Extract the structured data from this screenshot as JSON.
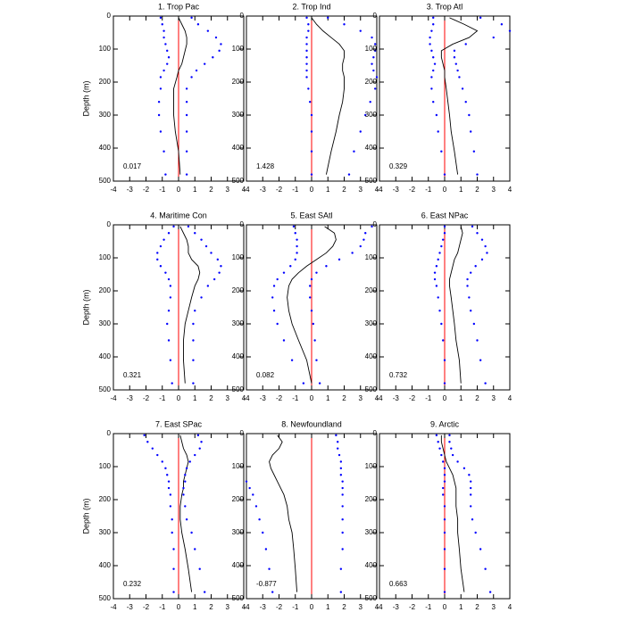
{
  "chart_data": [
    {
      "type": "line",
      "title": "1. Trop Pac",
      "ylabel": "Depth (m)",
      "annotation": 0.017,
      "y": [
        5,
        25,
        45,
        65,
        85,
        105,
        125,
        145,
        165,
        185,
        220,
        260,
        300,
        350,
        410,
        480
      ],
      "series": [
        {
          "color": "#000000",
          "style": "line",
          "values": [
            0,
            0.2,
            0.4,
            0.5,
            0.5,
            0.4,
            0.3,
            0.2,
            0,
            -0.1,
            -0.3,
            -0.3,
            -0.3,
            -0.2,
            0,
            0.1
          ]
        },
        {
          "color": "#0000ff",
          "style": "dots",
          "values": [
            -1.1,
            -1.0,
            -0.9,
            -0.9,
            -0.8,
            -0.7,
            -0.6,
            -0.7,
            -0.9,
            -1.1,
            -1.1,
            -1.2,
            -1.2,
            -1.1,
            -0.9,
            -0.8
          ]
        },
        {
          "color": "#0000ff",
          "style": "dots",
          "values": [
            0.8,
            1.2,
            1.8,
            2.3,
            2.6,
            2.5,
            2.1,
            1.6,
            1.1,
            0.8,
            0.5,
            0.5,
            0.5,
            0.5,
            0.5,
            0.5
          ]
        }
      ],
      "vline": 0,
      "vline_color": "#ff0000",
      "xlim": [
        -4,
        4
      ],
      "xticks": [
        -4,
        -3,
        -2,
        -1,
        0,
        1,
        2,
        3,
        4
      ],
      "ylim": [
        500,
        0
      ],
      "yticks": [
        0,
        100,
        200,
        300,
        400,
        500
      ]
    },
    {
      "type": "line",
      "title": "2. Trop Ind",
      "annotation": 1.428,
      "y": [
        5,
        25,
        45,
        65,
        85,
        105,
        125,
        145,
        165,
        185,
        220,
        260,
        300,
        350,
        410,
        480
      ],
      "series": [
        {
          "color": "#000000",
          "style": "line",
          "values": [
            0,
            0.3,
            0.7,
            1.2,
            1.7,
            2.0,
            2.0,
            1.9,
            1.9,
            2.0,
            2.0,
            1.9,
            1.7,
            1.5,
            1.2,
            0.9
          ]
        },
        {
          "color": "#0000ff",
          "style": "dots",
          "values": [
            -0.3,
            -0.2,
            -0.2,
            -0.3,
            -0.3,
            -0.3,
            -0.3,
            -0.3,
            -0.3,
            -0.3,
            -0.2,
            -0.1,
            0,
            0,
            0,
            0
          ]
        },
        {
          "color": "#0000ff",
          "style": "dots",
          "values": [
            1.0,
            2.0,
            3.0,
            3.7,
            3.9,
            3.9,
            3.8,
            3.7,
            3.8,
            4.0,
            3.9,
            3.6,
            3.3,
            3.0,
            2.6,
            2.3
          ]
        }
      ],
      "vline": 0,
      "vline_color": "#ff0000",
      "xlim": [
        -4,
        4
      ],
      "xticks": [
        -4,
        -3,
        -2,
        -1,
        0,
        1,
        2,
        3,
        4
      ],
      "ylim": [
        500,
        0
      ],
      "yticks": [
        0,
        100,
        200,
        300,
        400,
        500
      ]
    },
    {
      "type": "line",
      "title": "3. Trop Atl",
      "annotation": 0.329,
      "y": [
        5,
        25,
        45,
        65,
        85,
        105,
        125,
        145,
        165,
        185,
        220,
        260,
        300,
        350,
        410,
        480
      ],
      "series": [
        {
          "color": "#000000",
          "style": "line",
          "values": [
            0.3,
            1.2,
            2.0,
            1.5,
            0.5,
            -0.2,
            -0.2,
            -0.1,
            0,
            0,
            0.1,
            0.2,
            0.3,
            0.4,
            0.6,
            0.8
          ]
        },
        {
          "color": "#0000ff",
          "style": "dots",
          "values": [
            -0.7,
            -0.7,
            -0.8,
            -0.9,
            -0.9,
            -0.8,
            -0.7,
            -0.6,
            -0.7,
            -0.8,
            -0.8,
            -0.7,
            -0.5,
            -0.4,
            -0.2,
            0
          ]
        },
        {
          "color": "#0000ff",
          "style": "dots",
          "values": [
            2.2,
            3.5,
            4.0,
            3.0,
            1.3,
            0.6,
            0.6,
            0.7,
            0.8,
            0.9,
            1.1,
            1.3,
            1.5,
            1.6,
            1.8,
            2.0
          ]
        }
      ],
      "vline": 0,
      "vline_color": "#ff0000",
      "xlim": [
        -4,
        4
      ],
      "xticks": [
        -4,
        -3,
        -2,
        -1,
        0,
        1,
        2,
        3,
        4
      ],
      "ylim": [
        500,
        0
      ],
      "yticks": [
        0,
        100,
        200,
        300,
        400,
        500
      ]
    },
    {
      "type": "line",
      "title": "4. Maritime Con",
      "ylabel": "Depth (m)",
      "annotation": 0.321,
      "y": [
        5,
        25,
        45,
        65,
        85,
        105,
        125,
        145,
        165,
        185,
        220,
        260,
        300,
        350,
        410,
        480
      ],
      "series": [
        {
          "color": "#000000",
          "style": "line",
          "values": [
            0.1,
            0.3,
            0.5,
            0.6,
            0.6,
            0.8,
            1.2,
            1.3,
            1.2,
            1.0,
            0.8,
            0.6,
            0.4,
            0.3,
            0.3,
            0.4
          ]
        },
        {
          "color": "#0000ff",
          "style": "dots",
          "values": [
            -0.3,
            -0.6,
            -0.9,
            -1.1,
            -1.3,
            -1.3,
            -1.1,
            -0.8,
            -0.6,
            -0.5,
            -0.5,
            -0.6,
            -0.7,
            -0.6,
            -0.5,
            -0.4
          ]
        },
        {
          "color": "#0000ff",
          "style": "dots",
          "values": [
            0.6,
            1.0,
            1.4,
            1.7,
            2.0,
            2.4,
            2.6,
            2.5,
            2.2,
            1.8,
            1.4,
            1.0,
            0.9,
            0.9,
            0.9,
            0.9
          ]
        }
      ],
      "vline": 0,
      "vline_color": "#ff0000",
      "xlim": [
        -4,
        4
      ],
      "xticks": [
        -4,
        -3,
        -2,
        -1,
        0,
        1,
        2,
        3,
        4
      ],
      "ylim": [
        500,
        0
      ],
      "yticks": [
        0,
        100,
        200,
        300,
        400,
        500
      ]
    },
    {
      "type": "line",
      "title": "5. East SAtl",
      "annotation": 0.082,
      "y": [
        5,
        25,
        45,
        65,
        85,
        105,
        125,
        145,
        165,
        185,
        220,
        260,
        300,
        350,
        410,
        480
      ],
      "series": [
        {
          "color": "#000000",
          "style": "line",
          "values": [
            0.8,
            1.4,
            1.5,
            1.3,
            0.9,
            0.3,
            -0.3,
            -0.8,
            -1.2,
            -1.4,
            -1.5,
            -1.4,
            -1.2,
            -0.8,
            -0.3,
            0
          ]
        },
        {
          "color": "#0000ff",
          "style": "dots",
          "values": [
            -1.1,
            -1.0,
            -0.9,
            -0.9,
            -0.9,
            -1.0,
            -1.3,
            -1.7,
            -2.1,
            -2.3,
            -2.4,
            -2.3,
            -2.1,
            -1.7,
            -1.2,
            -0.5
          ]
        },
        {
          "color": "#0000ff",
          "style": "dots",
          "values": [
            3.7,
            3.3,
            3.2,
            3.0,
            2.5,
            1.7,
            0.9,
            0.3,
            0,
            -0.1,
            -0.1,
            0,
            0.1,
            0.2,
            0.3,
            0.5
          ]
        }
      ],
      "vline": 0,
      "vline_color": "#ff0000",
      "xlim": [
        -4,
        4
      ],
      "xticks": [
        -4,
        -3,
        -2,
        -1,
        0,
        1,
        2,
        3,
        4
      ],
      "ylim": [
        500,
        0
      ],
      "yticks": [
        0,
        100,
        200,
        300,
        400,
        500
      ]
    },
    {
      "type": "line",
      "title": "6. East NPac",
      "annotation": 0.732,
      "y": [
        5,
        25,
        45,
        65,
        85,
        105,
        125,
        145,
        165,
        185,
        220,
        260,
        300,
        350,
        410,
        480
      ],
      "series": [
        {
          "color": "#000000",
          "style": "line",
          "values": [
            1.0,
            1.1,
            1.0,
            0.9,
            0.8,
            0.6,
            0.5,
            0.4,
            0.3,
            0.3,
            0.4,
            0.5,
            0.6,
            0.7,
            0.9,
            1.0
          ]
        },
        {
          "color": "#0000ff",
          "style": "dots",
          "values": [
            0,
            0,
            -0.1,
            -0.2,
            -0.3,
            -0.4,
            -0.5,
            -0.6,
            -0.6,
            -0.5,
            -0.4,
            -0.3,
            -0.2,
            -0.1,
            0,
            0
          ]
        },
        {
          "color": "#0000ff",
          "style": "dots",
          "values": [
            1.7,
            2.0,
            2.3,
            2.5,
            2.6,
            2.3,
            1.9,
            1.6,
            1.4,
            1.4,
            1.5,
            1.6,
            1.8,
            2.0,
            2.2,
            2.5
          ]
        }
      ],
      "vline": 0,
      "vline_color": "#ff0000",
      "xlim": [
        -4,
        4
      ],
      "xticks": [
        -4,
        -3,
        -2,
        -1,
        0,
        1,
        2,
        3,
        4
      ],
      "ylim": [
        500,
        0
      ],
      "yticks": [
        0,
        100,
        200,
        300,
        400,
        500
      ]
    },
    {
      "type": "line",
      "title": "7. East SPac",
      "ylabel": "Depth (m)",
      "annotation": 0.232,
      "y": [
        5,
        25,
        45,
        65,
        85,
        105,
        125,
        145,
        165,
        185,
        220,
        260,
        300,
        350,
        410,
        480
      ],
      "series": [
        {
          "color": "#000000",
          "style": "line",
          "values": [
            0.1,
            0.2,
            0.3,
            0.5,
            0.6,
            0.5,
            0.4,
            0.3,
            0.3,
            0.2,
            0.1,
            0.1,
            0.2,
            0.4,
            0.6,
            0.8
          ]
        },
        {
          "color": "#0000ff",
          "style": "dots",
          "values": [
            -2.1,
            -1.9,
            -1.6,
            -1.3,
            -1.0,
            -0.8,
            -0.7,
            -0.6,
            -0.6,
            -0.5,
            -0.5,
            -0.4,
            -0.4,
            -0.3,
            -0.3,
            -0.3
          ]
        },
        {
          "color": "#0000ff",
          "style": "dots",
          "values": [
            1.2,
            1.4,
            1.3,
            1.0,
            0.7,
            0.5,
            0.4,
            0.4,
            0.3,
            0.3,
            0.4,
            0.5,
            0.8,
            1.0,
            1.3,
            1.6
          ]
        }
      ],
      "vline": 0,
      "vline_color": "#ff0000",
      "xlim": [
        -4,
        4
      ],
      "xticks": [
        -4,
        -3,
        -2,
        -1,
        0,
        1,
        2,
        3,
        4
      ],
      "ylim": [
        500,
        0
      ],
      "yticks": [
        0,
        100,
        200,
        300,
        400,
        500
      ]
    },
    {
      "type": "line",
      "title": "8. Newfoundland",
      "annotation": -0.877,
      "y": [
        5,
        25,
        45,
        65,
        85,
        105,
        125,
        145,
        165,
        185,
        220,
        260,
        300,
        350,
        410,
        480
      ],
      "series": [
        {
          "color": "#000000",
          "style": "line",
          "values": [
            -2.1,
            -1.8,
            -2.0,
            -2.4,
            -2.6,
            -2.5,
            -2.3,
            -2.1,
            -1.9,
            -1.7,
            -1.5,
            -1.4,
            -1.2,
            -1.1,
            -1.0,
            -0.9
          ]
        },
        {
          "color": "#0000ff",
          "style": "dots",
          "values": [
            null,
            null,
            null,
            null,
            null,
            null,
            null,
            -4.0,
            -3.8,
            -3.6,
            -3.4,
            -3.2,
            -3.0,
            -2.8,
            -2.6,
            -2.4
          ]
        },
        {
          "color": "#0000ff",
          "style": "dots",
          "values": [
            1.5,
            1.6,
            1.6,
            1.7,
            1.8,
            1.8,
            1.8,
            1.9,
            1.9,
            1.9,
            1.9,
            1.9,
            1.9,
            1.9,
            1.8,
            1.8
          ]
        }
      ],
      "vline": 0,
      "vline_color": "#ff0000",
      "xlim": [
        -4,
        4
      ],
      "xticks": [
        -4,
        -3,
        -2,
        -1,
        0,
        1,
        2,
        3,
        4
      ],
      "ylim": [
        500,
        0
      ],
      "yticks": [
        0,
        100,
        200,
        300,
        400,
        500
      ]
    },
    {
      "type": "line",
      "title": "9. Arctic",
      "annotation": 0.663,
      "y": [
        5,
        25,
        45,
        65,
        85,
        105,
        125,
        145,
        165,
        185,
        220,
        260,
        300,
        350,
        410,
        480
      ],
      "series": [
        {
          "color": "#000000",
          "style": "line",
          "values": [
            -0.2,
            -0.2,
            -0.1,
            0,
            0.1,
            0.3,
            0.5,
            0.6,
            0.7,
            0.7,
            0.7,
            0.8,
            0.8,
            0.9,
            1.0,
            1.2
          ]
        },
        {
          "color": "#0000ff",
          "style": "dots",
          "values": [
            -0.5,
            -0.4,
            -0.3,
            -0.2,
            -0.1,
            0,
            0,
            0,
            -0.1,
            -0.1,
            0,
            0,
            0,
            0,
            0,
            0
          ]
        },
        {
          "color": "#0000ff",
          "style": "dots",
          "values": [
            0.3,
            0.3,
            0.4,
            0.5,
            0.8,
            1.2,
            1.5,
            1.6,
            1.6,
            1.6,
            1.6,
            1.7,
            1.9,
            2.2,
            2.5,
            2.8
          ]
        }
      ],
      "vline": 0,
      "vline_color": "#ff0000",
      "xlim": [
        -4,
        4
      ],
      "xticks": [
        -4,
        -3,
        -2,
        -1,
        0,
        1,
        2,
        3,
        4
      ],
      "ylim": [
        500,
        0
      ],
      "yticks": [
        0,
        100,
        200,
        300,
        400,
        500
      ]
    }
  ]
}
